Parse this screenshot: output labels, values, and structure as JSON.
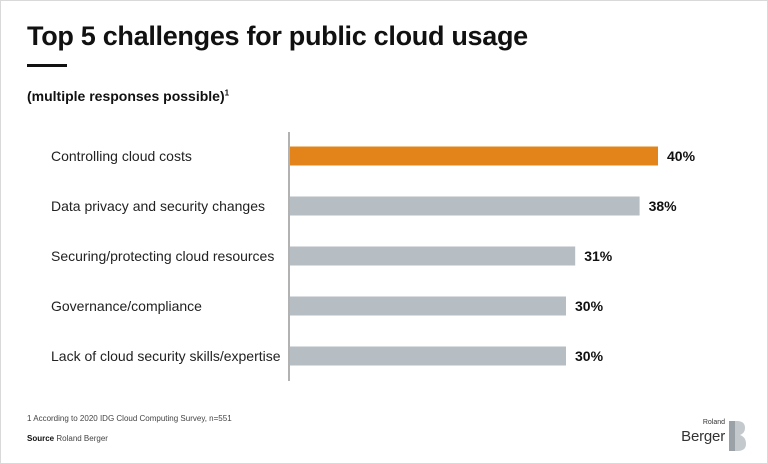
{
  "header": {
    "title": "Top 5 challenges for public cloud usage",
    "subtitle": "(multiple responses possible)",
    "subtitle_note": "1"
  },
  "chart_data": {
    "type": "bar",
    "orientation": "horizontal",
    "categories": [
      "Controlling cloud costs",
      "Data privacy and security changes",
      "Securing/protecting cloud resources",
      "Governance/compliance",
      "Lack of cloud security skills/expertise"
    ],
    "values": [
      40,
      38,
      31,
      30,
      30
    ],
    "value_labels": [
      "40%",
      "38%",
      "31%",
      "30%",
      "30%"
    ],
    "highlight_index": 0,
    "xlim": [
      0,
      40
    ],
    "grid": false,
    "colors": {
      "highlight": "#E2841A",
      "default": "#B7BEC3",
      "axis": "#666666"
    }
  },
  "footer": {
    "footnote": "1 According to 2020 IDG Cloud Computing Survey, n=551",
    "source_label": "Source",
    "source_text": "Roland Berger"
  },
  "logo": {
    "small": "Roland",
    "big": "Berger",
    "icon": "roland-berger-b-logo-icon"
  }
}
